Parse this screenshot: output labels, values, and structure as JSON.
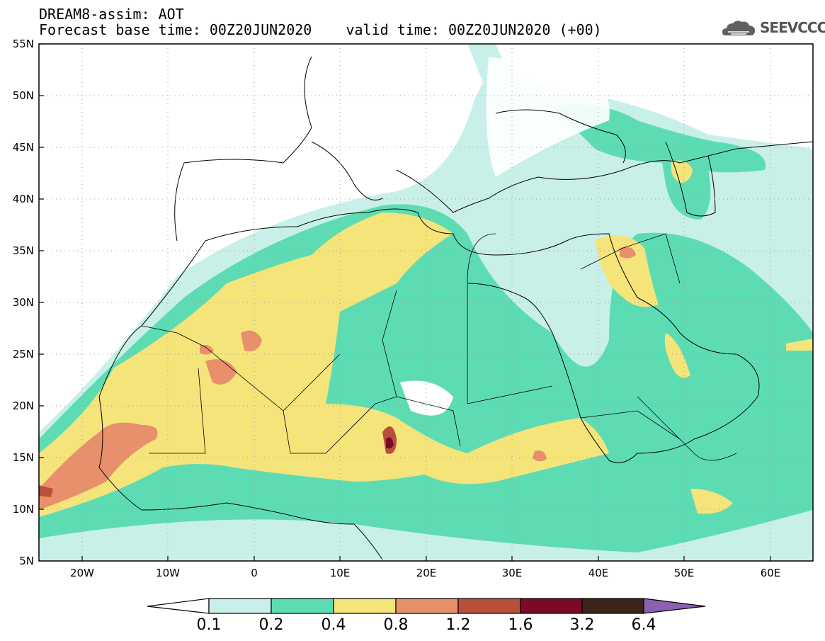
{
  "header": {
    "line1": "DREAM8-assim: AOT",
    "line2": "Forecast base time: 00Z20JUN2020    valid time: 00Z20JUN2020 (+00)",
    "logo_text": "SEEVCCC"
  },
  "map": {
    "lat_labels": [
      "55N",
      "50N",
      "45N",
      "40N",
      "35N",
      "30N",
      "25N",
      "20N",
      "15N",
      "10N",
      "5N"
    ],
    "lon_labels": [
      "20W",
      "10W",
      "0",
      "10E",
      "20E",
      "30E",
      "40E",
      "50E",
      "60E"
    ],
    "lat_range": [
      5,
      55
    ],
    "lon_range": [
      -25,
      65
    ]
  },
  "colorbar": {
    "labels": [
      "0.1",
      "0.2",
      "0.4",
      "0.8",
      "1.2",
      "1.6",
      "3.2",
      "6.4"
    ],
    "colors": [
      "#ffffff",
      "#c8f0e8",
      "#5ddcb4",
      "#f5e47a",
      "#e8906c",
      "#b8503c",
      "#7a0a28",
      "#3c2418",
      "#8a60b0"
    ]
  }
}
